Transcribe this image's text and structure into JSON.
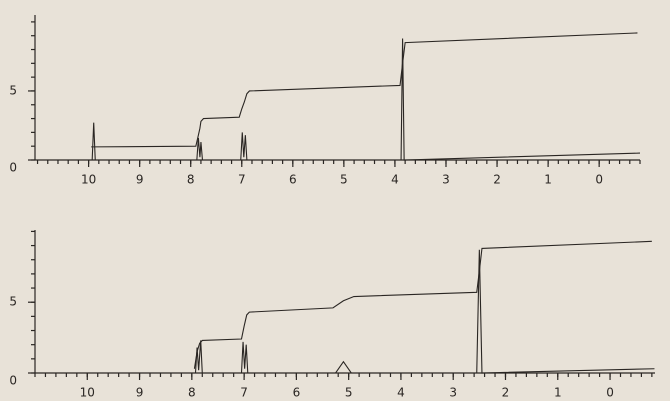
{
  "chart_data": [
    {
      "type": "line",
      "xlim": [
        11.05,
        -0.8
      ],
      "ylim": [
        0,
        10.5
      ],
      "xticks": [
        10,
        9,
        8,
        7,
        6,
        5,
        4,
        3,
        2,
        1,
        0
      ],
      "yticks": [
        0,
        5
      ],
      "series": [
        {
          "color": "#2a2623",
          "x": [
            11.05,
            9.93,
            9.9,
            9.87,
            7.88,
            7.85,
            7.82,
            7.8,
            7.77,
            7.02,
            6.99,
            6.96,
            6.93,
            6.9,
            3.88,
            3.85,
            3.82,
            -0.8
          ],
          "values": [
            0,
            0,
            2.7,
            0,
            0,
            1.6,
            0.2,
            1.3,
            0,
            0,
            2.0,
            0.2,
            1.8,
            0,
            0,
            8.8,
            0,
            0.5
          ]
        },
        {
          "color": "#2a2623",
          "x": [
            9.95,
            9.9,
            7.9,
            7.85,
            7.82,
            7.8,
            7.75,
            7.05,
            7.0,
            6.95,
            6.9,
            6.85,
            3.9,
            3.85,
            3.8,
            -0.75
          ],
          "values": [
            0.95,
            0.95,
            1.0,
            1.8,
            2.3,
            2.8,
            3.0,
            3.1,
            3.7,
            4.2,
            4.8,
            5.0,
            5.4,
            7.0,
            8.5,
            9.2
          ]
        }
      ]
    },
    {
      "type": "line",
      "xlim": [
        11.0,
        -0.86
      ],
      "ylim": [
        0,
        10.1
      ],
      "xticks": [
        10,
        9,
        8,
        7,
        6,
        5,
        4,
        3,
        2,
        1,
        0
      ],
      "yticks": [
        0,
        5
      ],
      "series": [
        {
          "color": "#2a2623",
          "x": [
            11.0,
            7.93,
            7.9,
            7.87,
            7.83,
            7.8,
            7.05,
            7.02,
            6.99,
            6.96,
            6.93,
            5.25,
            5.1,
            4.95,
            2.55,
            2.5,
            2.45,
            -0.85
          ],
          "values": [
            0,
            0,
            1.8,
            0.2,
            2.3,
            0,
            0,
            2.2,
            0.3,
            2.0,
            0,
            0,
            0.8,
            0,
            0,
            8.7,
            0,
            0.3
          ]
        },
        {
          "color": "#2a2623",
          "x": [
            7.95,
            7.9,
            7.85,
            7.8,
            7.05,
            7.0,
            6.95,
            6.9,
            5.3,
            5.1,
            4.9,
            2.55,
            2.5,
            2.45,
            -0.8
          ],
          "values": [
            0.3,
            1.5,
            2.1,
            2.3,
            2.4,
            3.3,
            4.1,
            4.3,
            4.6,
            5.1,
            5.4,
            5.7,
            7.2,
            8.8,
            9.3
          ]
        }
      ]
    }
  ]
}
